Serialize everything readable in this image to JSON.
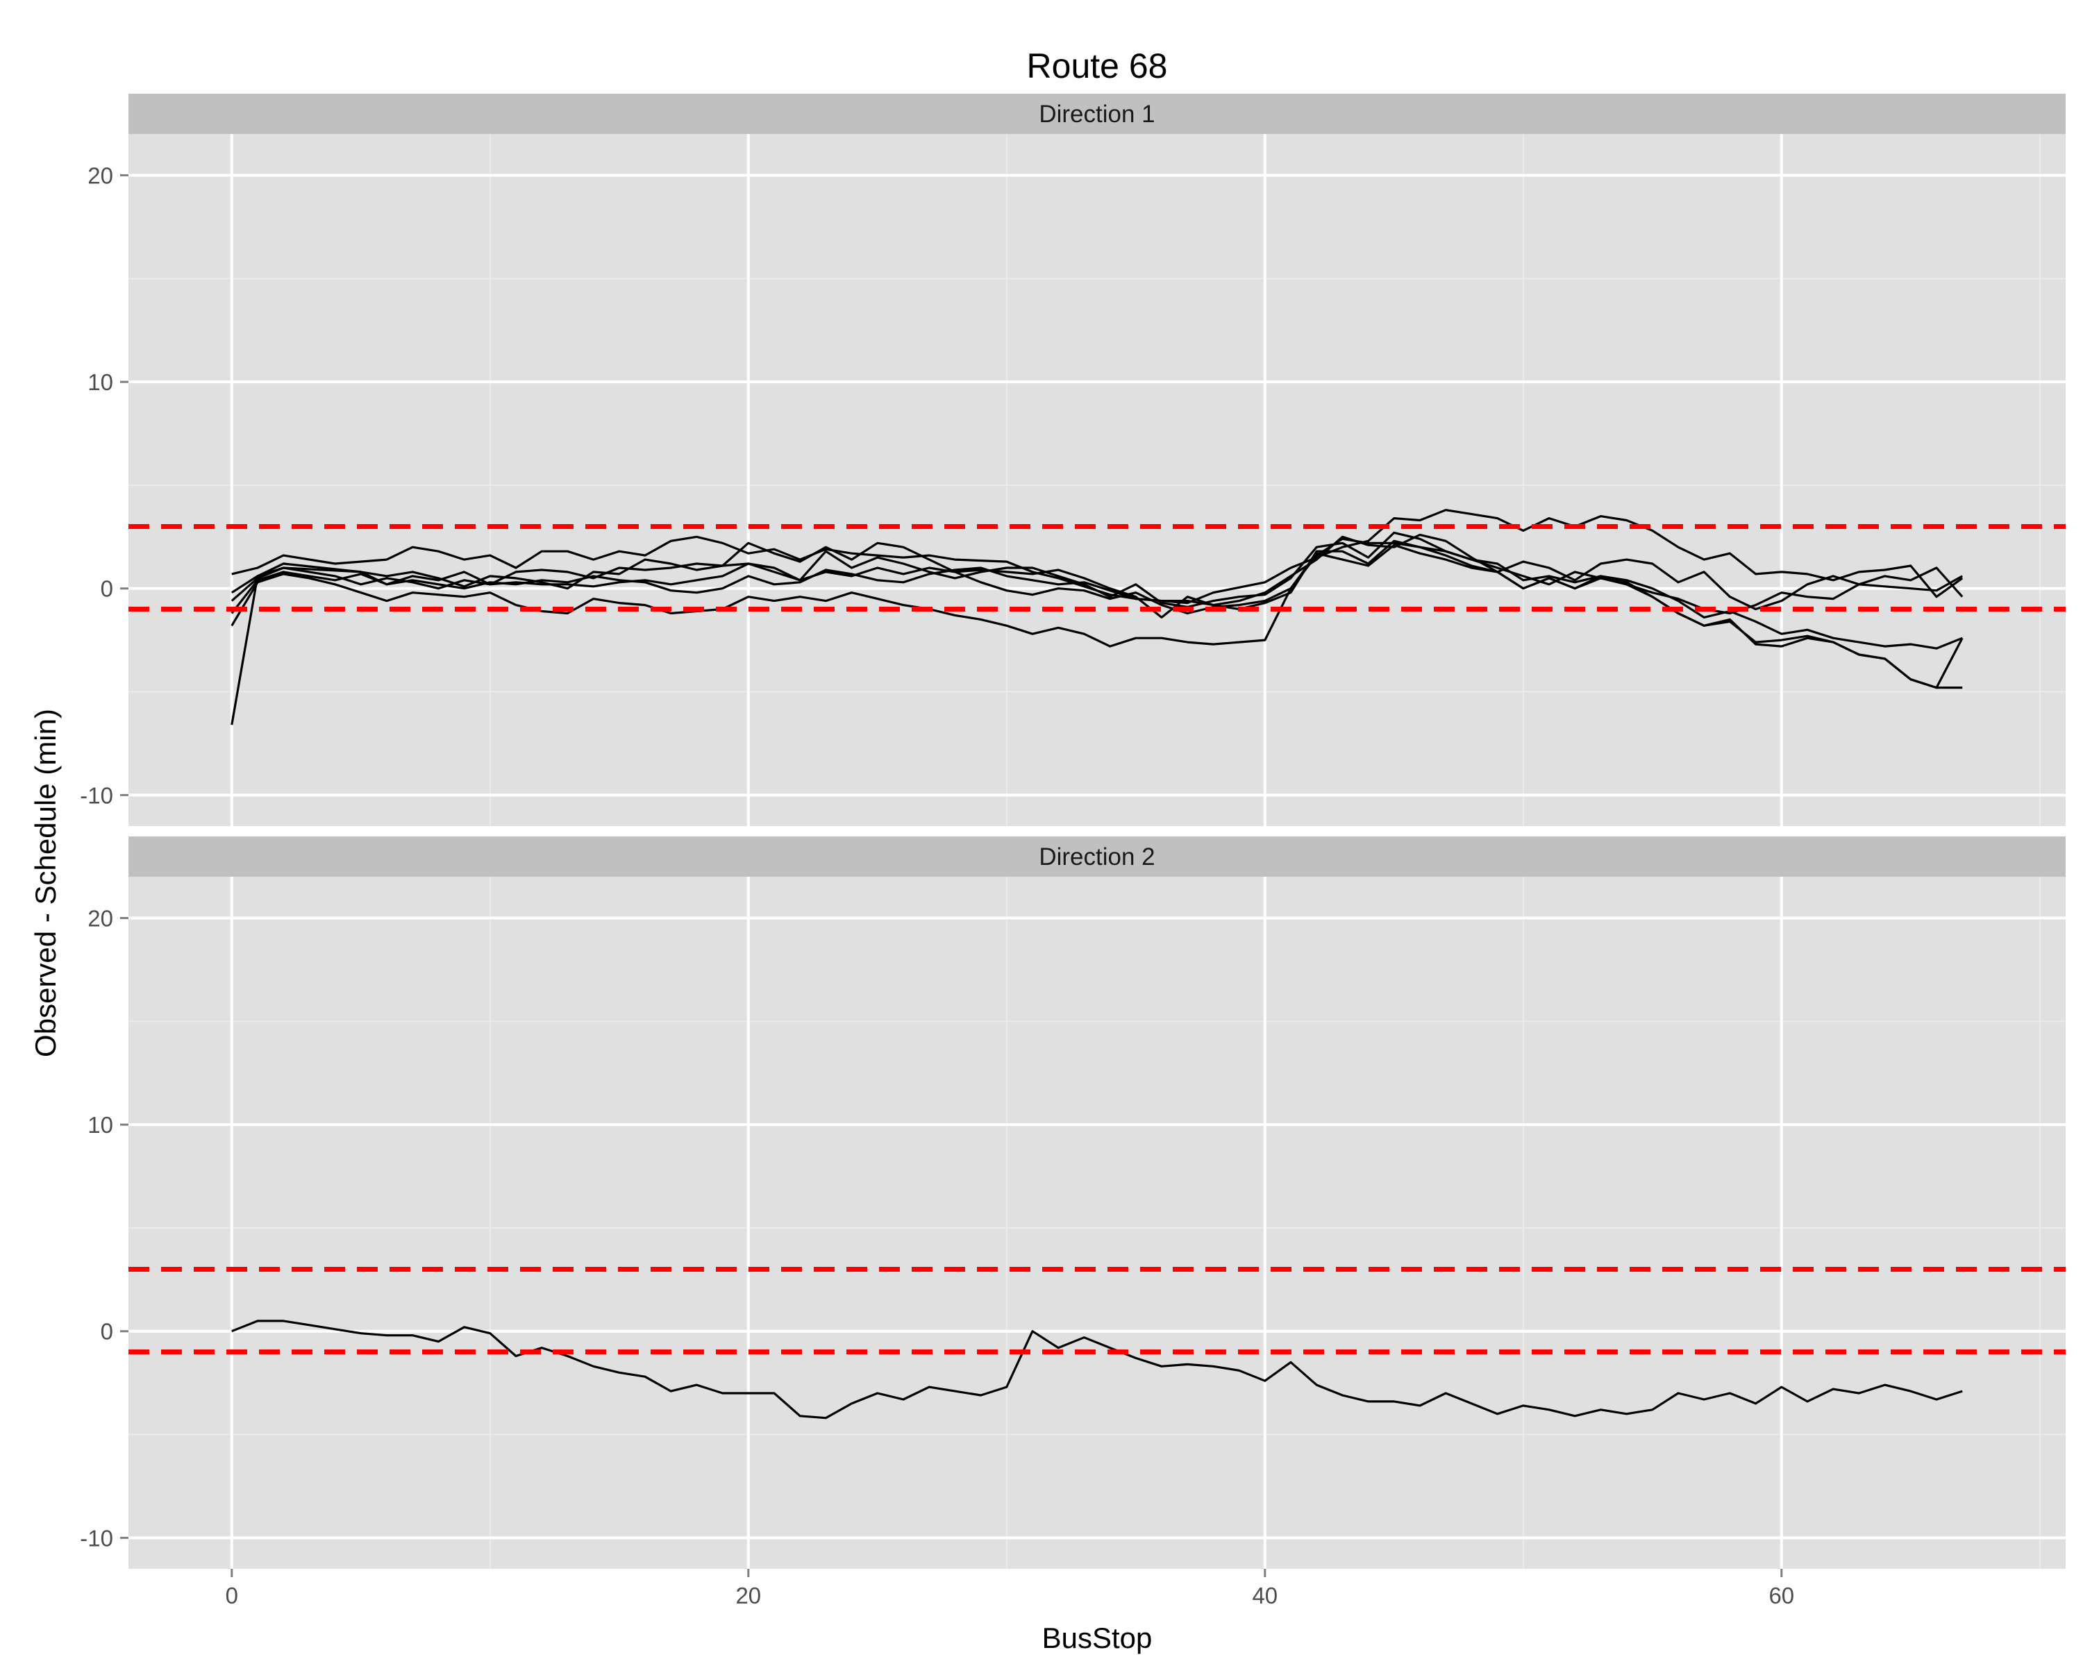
{
  "chart_data": {
    "type": "line",
    "title": "Route 68",
    "xlabel": "BusStop",
    "ylabel": "Observed - Schedule (min)",
    "xlim": [
      -4,
      71
    ],
    "ylim": [
      -11.5,
      22
    ],
    "x_ticks": [
      0,
      20,
      40,
      60
    ],
    "y_ticks": [
      -10,
      0,
      10,
      20
    ],
    "grid": true,
    "reference_lines": [
      3,
      -1
    ],
    "colors": {
      "panel_bg": "#e0e0e0",
      "strip_bg": "#c0c0c0",
      "grid_major": "#ffffff",
      "grid_minor": "#ebebeb",
      "line": "#000000",
      "reference_line": "#ff0000",
      "tick_text": "#4d4d4d"
    },
    "panels": [
      {
        "strip": "Direction 1",
        "series": [
          {
            "x": [
              0,
              1,
              2,
              4,
              6,
              7,
              8,
              9,
              10,
              11,
              12,
              13,
              14,
              15,
              16,
              17,
              18,
              19,
              20,
              21,
              22,
              23,
              24,
              25,
              26,
              27,
              28,
              30,
              31,
              32,
              33,
              34,
              35,
              36,
              37,
              38,
              40,
              41,
              42,
              43,
              44,
              45,
              46,
              47,
              48,
              49,
              50,
              51,
              52,
              53,
              54,
              55,
              56,
              57,
              58,
              59,
              60,
              61,
              62,
              63,
              64,
              65,
              66,
              67
            ],
            "y": [
              0.7,
              1.0,
              1.6,
              1.2,
              1.4,
              2.0,
              1.8,
              1.4,
              1.6,
              1.0,
              1.8,
              1.8,
              1.4,
              1.8,
              1.6,
              2.3,
              2.5,
              2.2,
              1.7,
              1.9,
              1.4,
              1.9,
              1.7,
              1.6,
              1.5,
              1.6,
              1.4,
              1.3,
              0.8,
              0.5,
              0.1,
              -0.3,
              -0.5,
              -0.6,
              -0.7,
              -0.2,
              0.3,
              1.0,
              1.5,
              2.0,
              2.3,
              3.4,
              3.3,
              3.8,
              3.6,
              3.4,
              2.8,
              3.4,
              3.0,
              3.5,
              3.3,
              2.8,
              2.0,
              1.4,
              1.7,
              0.7,
              0.8,
              0.7,
              0.4,
              0.8,
              0.9,
              1.1,
              -0.4,
              0.5
            ]
          },
          {
            "x": [
              0,
              1,
              2,
              5,
              6,
              7,
              8,
              9,
              10,
              11,
              12,
              13,
              14,
              15,
              16,
              17,
              18,
              19,
              20,
              21,
              22,
              23,
              24,
              25,
              26,
              27,
              28,
              29,
              30,
              31,
              32,
              33,
              34,
              35,
              36,
              37,
              38,
              39,
              40,
              41,
              42,
              43,
              44,
              45,
              46,
              47,
              48,
              49,
              50,
              51,
              52,
              53,
              54,
              55,
              56,
              57,
              58,
              59,
              60,
              61,
              62,
              63,
              64,
              65,
              66,
              67
            ],
            "y": [
              -0.2,
              0.6,
              1.2,
              0.8,
              0.2,
              0.6,
              0.4,
              0.8,
              0.2,
              0.8,
              0.9,
              0.8,
              0.5,
              1.0,
              0.9,
              1.0,
              1.2,
              1.1,
              2.2,
              1.7,
              1.3,
              2.0,
              1.4,
              2.2,
              2.0,
              1.4,
              0.8,
              0.9,
              0.8,
              0.7,
              0.9,
              0.5,
              0.0,
              -0.4,
              -1.4,
              -0.4,
              -0.8,
              -0.6,
              -0.2,
              0.6,
              1.4,
              2.5,
              2.1,
              2.0,
              2.6,
              2.3,
              1.5,
              0.8,
              1.3,
              1.0,
              0.4,
              1.2,
              1.4,
              1.2,
              0.3,
              0.8,
              -0.4,
              -1.0,
              -0.6,
              0.2,
              0.6,
              0.2,
              0.1,
              0.0,
              -0.1,
              0.6
            ]
          },
          {
            "x": [
              0,
              1,
              2,
              5,
              6,
              7,
              8,
              9,
              10,
              11,
              12,
              13,
              14,
              15,
              16,
              17,
              18,
              19,
              20,
              21,
              22,
              23,
              24,
              25,
              26,
              27,
              28,
              29,
              30,
              31,
              32,
              33,
              34,
              35,
              36,
              37,
              38,
              39,
              40,
              41,
              42,
              43,
              44,
              45,
              46,
              47,
              48,
              49,
              50,
              51,
              52,
              53,
              54,
              55,
              56,
              57,
              58,
              59,
              60,
              61,
              62,
              63,
              64,
              65,
              66,
              67
            ],
            "y": [
              -0.6,
              0.5,
              1.0,
              0.8,
              0.6,
              0.8,
              0.5,
              0.1,
              0.6,
              0.5,
              0.3,
              0.0,
              0.8,
              0.7,
              1.4,
              1.2,
              0.9,
              1.1,
              1.2,
              1.0,
              0.4,
              1.8,
              1.0,
              1.5,
              1.2,
              0.8,
              0.5,
              0.8,
              1.0,
              1.0,
              0.6,
              0.2,
              -0.4,
              0.2,
              -0.7,
              -0.9,
              -0.6,
              -0.4,
              -0.3,
              0.5,
              2.0,
              2.2,
              1.5,
              2.7,
              2.4,
              1.8,
              1.4,
              1.0,
              0.6,
              0.2,
              0.8,
              0.5,
              0.2,
              -0.2,
              -0.5,
              -1.0,
              -1.2,
              -0.8,
              -0.2,
              -0.4,
              -0.5,
              0.2,
              0.6,
              0.4,
              1.0,
              -0.4
            ]
          },
          {
            "x": [
              0,
              1,
              2,
              3,
              4,
              5,
              6,
              7,
              8,
              9,
              10,
              11,
              12,
              13,
              14,
              15,
              16,
              17,
              18,
              19,
              20,
              21,
              22,
              23,
              24,
              25,
              26,
              27,
              28,
              29,
              30,
              31,
              32,
              33,
              34,
              35,
              36,
              37,
              38,
              39,
              40,
              41,
              42,
              43,
              44,
              45,
              46,
              47,
              48,
              49,
              50,
              51,
              52,
              53,
              54,
              55,
              56,
              57,
              58,
              59,
              60,
              61,
              62,
              63,
              64,
              65,
              66,
              67
            ],
            "y": [
              -1.2,
              0.4,
              0.8,
              0.6,
              0.4,
              0.7,
              0.2,
              0.4,
              0.2,
              0.0,
              0.3,
              0.2,
              0.4,
              0.3,
              0.6,
              0.4,
              0.3,
              -0.1,
              -0.2,
              0.0,
              0.6,
              0.2,
              0.3,
              0.9,
              0.7,
              0.4,
              0.3,
              0.7,
              0.9,
              1.0,
              0.6,
              0.4,
              0.2,
              0.3,
              -0.1,
              -0.5,
              -0.6,
              -0.6,
              -0.8,
              -1.0,
              -0.7,
              -0.2,
              1.8,
              1.8,
              1.2,
              2.3,
              2.0,
              1.6,
              1.1,
              0.8,
              0.0,
              0.5,
              0.0,
              0.5,
              0.3,
              -0.4,
              -1.2,
              -1.8,
              -1.6,
              -2.6,
              -2.5,
              -2.3,
              -2.6,
              -3.2,
              -3.4,
              -4.4,
              -4.8,
              -4.8
            ]
          },
          {
            "x": [
              0,
              1,
              2,
              3,
              4,
              5,
              6,
              7,
              8,
              9,
              10,
              11,
              12,
              13,
              14,
              15,
              16,
              17,
              18,
              19,
              20,
              21,
              22,
              23,
              24,
              25,
              26,
              27,
              28,
              29,
              30,
              31,
              32,
              33,
              34,
              35,
              36,
              37,
              38,
              39,
              40,
              41,
              42,
              43,
              44,
              45,
              46,
              47,
              48,
              49,
              50,
              51,
              52,
              53,
              54,
              55,
              56,
              57,
              58,
              59,
              60,
              61,
              62,
              63,
              64,
              65,
              66,
              67
            ],
            "y": [
              -1.8,
              0.3,
              0.7,
              0.5,
              0.2,
              -0.2,
              -0.6,
              -0.2,
              -0.3,
              -0.4,
              -0.2,
              -0.8,
              -1.1,
              -1.2,
              -0.5,
              -0.7,
              -0.8,
              -1.2,
              -1.1,
              -1.0,
              -0.4,
              -0.6,
              -0.4,
              -0.6,
              -0.2,
              -0.5,
              -0.8,
              -1.0,
              -1.3,
              -1.5,
              -1.8,
              -2.2,
              -1.9,
              -2.2,
              -2.8,
              -2.4,
              -2.4,
              -2.6,
              -2.7,
              -2.6,
              -2.5,
              0.0,
              1.7,
              1.4,
              1.1,
              2.1,
              1.7,
              1.4,
              1.0,
              0.8,
              0.0,
              0.5,
              0.0,
              0.6,
              0.2,
              -0.4,
              -1.2,
              -1.8,
              -1.5,
              -2.7,
              -2.8,
              -2.4,
              -2.6,
              -3.2,
              -3.4,
              -4.4,
              -4.8,
              -2.4
            ]
          },
          {
            "x": [
              0,
              1,
              2,
              3,
              4,
              5,
              6,
              7,
              8,
              9,
              10,
              11,
              12,
              13,
              14,
              15,
              16,
              17,
              18,
              19,
              20,
              21,
              22,
              23,
              24,
              25,
              26,
              27,
              28,
              29,
              30,
              31,
              32,
              33,
              34,
              35,
              36,
              37,
              38,
              39,
              40,
              41,
              42,
              43,
              44,
              45,
              46,
              47,
              48,
              49,
              50,
              51,
              52,
              53,
              54,
              55,
              56,
              57,
              58,
              59,
              60,
              61,
              62,
              63,
              64,
              65,
              66,
              67
            ],
            "y": [
              -6.6,
              0.6,
              1.0,
              0.8,
              0.6,
              0.2,
              0.5,
              0.3,
              0.0,
              0.4,
              0.2,
              0.3,
              0.2,
              0.2,
              0.1,
              0.3,
              0.4,
              0.2,
              0.4,
              0.6,
              1.2,
              0.8,
              0.4,
              0.8,
              0.6,
              1.0,
              0.7,
              1.0,
              0.8,
              0.3,
              -0.1,
              -0.3,
              0.0,
              -0.1,
              -0.5,
              -0.2,
              -0.8,
              -1.2,
              -0.9,
              -0.8,
              -0.6,
              0.0,
              1.6,
              2.4,
              2.2,
              2.2,
              2.0,
              1.8,
              1.4,
              1.2,
              0.4,
              0.6,
              0.3,
              0.6,
              0.4,
              0.0,
              -0.6,
              -1.4,
              -1.1,
              -1.6,
              -2.2,
              -2.0,
              -2.4,
              -2.6,
              -2.8,
              -2.7,
              -2.9,
              -2.4
            ]
          }
        ]
      },
      {
        "strip": "Direction 2",
        "series": [
          {
            "x": [
              0,
              1,
              2,
              3,
              4,
              5,
              6,
              7,
              8,
              9,
              10,
              11,
              12,
              13,
              14,
              15,
              16,
              17,
              18,
              19,
              20,
              21,
              22,
              23,
              24,
              25,
              26,
              27,
              28,
              29,
              30,
              31,
              32,
              33,
              34,
              35,
              36,
              37,
              38,
              39,
              40,
              41,
              42,
              43,
              44,
              45,
              46,
              47,
              48,
              49,
              50,
              51,
              52,
              53,
              54,
              55,
              56,
              57,
              58,
              59,
              60,
              61,
              62,
              63,
              64,
              65,
              66,
              67
            ],
            "y": [
              0.0,
              0.5,
              0.5,
              0.3,
              0.1,
              -0.1,
              -0.2,
              -0.2,
              -0.5,
              0.2,
              -0.1,
              -1.2,
              -0.8,
              -1.2,
              -1.7,
              -2.0,
              -2.2,
              -2.9,
              -2.6,
              -3.0,
              -3.0,
              -3.0,
              -4.1,
              -4.2,
              -3.5,
              -3.0,
              -3.3,
              -2.7,
              -2.9,
              -3.1,
              -2.7,
              0.0,
              -0.8,
              -0.3,
              -0.8,
              -1.3,
              -1.7,
              -1.6,
              -1.7,
              -1.9,
              -2.4,
              -1.5,
              -2.6,
              -3.1,
              -3.4,
              -3.4,
              -3.6,
              -3.0,
              -3.5,
              -4.0,
              -3.6,
              -3.8,
              -4.1,
              -3.8,
              -4.0,
              -3.8,
              -3.0,
              -3.3,
              -3.0,
              -3.5,
              -2.7,
              -3.4,
              -2.8,
              -3.0,
              -2.6,
              -2.9,
              -3.3,
              -2.9
            ]
          }
        ]
      }
    ]
  }
}
